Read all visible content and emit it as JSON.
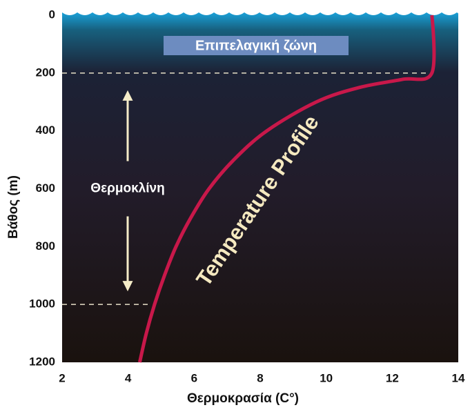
{
  "chart_data": {
    "type": "line",
    "x_label": "Θερμοκρασία (C°)",
    "y_label": "Βάθος (m)",
    "x": [
      13.2,
      13.2,
      12.3,
      11.0,
      9.7,
      8.2,
      7.2,
      6.45,
      5.9,
      5.45,
      5.1,
      4.8,
      4.55,
      4.35
    ],
    "series": [
      {
        "name": "Temperature Profile",
        "color": "#c8184a",
        "values": [
          0,
          200,
          222,
          250,
          300,
          400,
          500,
          600,
          700,
          800,
          900,
          1000,
          1100,
          1200
        ]
      }
    ],
    "xlim": [
      2,
      14
    ],
    "xticks": [
      2,
      4,
      6,
      8,
      10,
      12,
      14
    ],
    "ylim": [
      0,
      1200
    ],
    "yticks": [
      0,
      200,
      400,
      600,
      800,
      1000,
      1200
    ],
    "y_inverted": true,
    "zone_label": "Επιπελαγική ζώνη",
    "thermocline": {
      "label": "Θερμοκλίνη",
      "range": [
        200,
        1000
      ]
    }
  }
}
